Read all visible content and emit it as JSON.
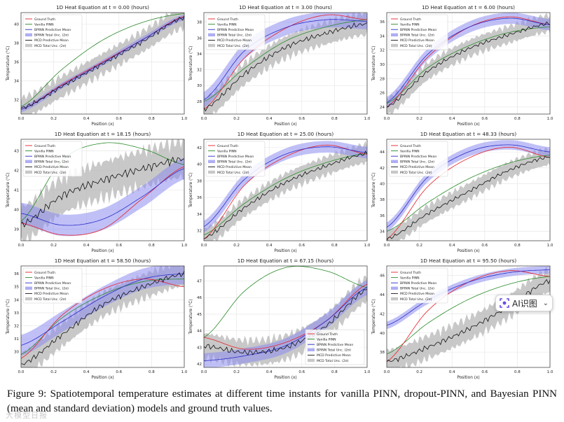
{
  "figure": {
    "caption": "Figure 9:  Spatiotemporal temperature estimates at different time instants for vanilla PINN, dropout-PINN, and Bayesian PINN (mean and standard deviation) models and ground truth values.",
    "widget_label": "AI识图",
    "watermark": "大模型日报"
  },
  "colors": {
    "ground_truth": "#e8202a",
    "vanilla": "#2a8a2a",
    "bpinn": "#2b2bc8",
    "bpinn_band": "#8c8cf0",
    "mcd": "#111111",
    "mcd_band": "#b0b0b0",
    "grid": "#e4e4e4"
  },
  "legend": [
    {
      "key": "gt",
      "label": "Ground Truth",
      "kind": "line",
      "color": "#e8202a"
    },
    {
      "key": "vanilla",
      "label": "Vanilla PINN",
      "kind": "line",
      "color": "#2a8a2a"
    },
    {
      "key": "bpinn",
      "label": "BPINN Predictive Mean",
      "kind": "line",
      "color": "#2b2bc8"
    },
    {
      "key": "bpinn_band",
      "label": "BPINN Total Unc. (2σ)",
      "kind": "patch",
      "color": "#8c8cf0"
    },
    {
      "key": "mcd",
      "label": "MCD Predictive Mean",
      "kind": "line",
      "color": "#111111"
    },
    {
      "key": "mcd_band",
      "label": "MCD Total Unc. (2σ)",
      "kind": "patch",
      "color": "#b0b0b0"
    }
  ],
  "chart_data": [
    {
      "type": "line",
      "title": "1D Heat Equation at t = 0.00 (hours)",
      "xlabel": "Position (x)",
      "ylabel": "Temperature (°C)",
      "xlim": [
        0,
        1
      ],
      "ylim": [
        30.5,
        41.2
      ],
      "xticks": [
        "0.0",
        "0.2",
        "0.4",
        "0.6",
        "0.8",
        "1.0"
      ],
      "yticks": [
        "32",
        "34",
        "36",
        "38",
        "40"
      ],
      "legend_loc": "top-left",
      "x": [
        0,
        0.25,
        0.5,
        0.75,
        1.0
      ],
      "series": [
        {
          "name": "Ground Truth",
          "values": [
            31.0,
            33.6,
            36.0,
            38.4,
            40.8
          ]
        },
        {
          "name": "Vanilla PINN",
          "values": [
            31.3,
            35.2,
            38.3,
            40.2,
            41.1
          ]
        },
        {
          "name": "BPINN Predictive Mean",
          "values": [
            31.0,
            33.5,
            35.9,
            38.4,
            40.7
          ]
        },
        {
          "name": "MCD Predictive Mean",
          "values": [
            31.1,
            33.4,
            35.8,
            38.2,
            40.7
          ]
        }
      ],
      "bpinn_unc": 0.3,
      "mcd_unc": 1.2
    },
    {
      "type": "line",
      "title": "1D Heat Equation at t = 3.00 (hours)",
      "xlabel": "Position (x)",
      "ylabel": "Temperature (°C)",
      "xlim": [
        0,
        1
      ],
      "ylim": [
        26.4,
        39.2
      ],
      "xticks": [
        "0.0",
        "0.2",
        "0.4",
        "0.6",
        "0.8",
        "1.0"
      ],
      "yticks": [
        "28",
        "30",
        "32",
        "34",
        "36",
        "38"
      ],
      "legend_loc": "top-left",
      "x": [
        0,
        0.25,
        0.5,
        0.75,
        1.0
      ],
      "series": [
        {
          "name": "Ground Truth",
          "values": [
            27.0,
            33.5,
            37.2,
            38.9,
            38.3
          ]
        },
        {
          "name": "Vanilla PINN",
          "values": [
            28.0,
            32.2,
            35.6,
            37.4,
            38.3
          ]
        },
        {
          "name": "BPINN Predictive Mean",
          "values": [
            28.2,
            34.4,
            37.3,
            38.3,
            38.1
          ]
        },
        {
          "name": "MCD Predictive Mean",
          "values": [
            27.0,
            31.5,
            34.8,
            36.6,
            37.8
          ]
        }
      ],
      "bpinn_unc": 1.0,
      "mcd_unc": 1.5
    },
    {
      "type": "line",
      "title": "1D Heat Equation at t = 6.00 (hours)",
      "xlabel": "Position (x)",
      "ylabel": "Temperature (°C)",
      "xlim": [
        0,
        1
      ],
      "ylim": [
        23.0,
        37.3
      ],
      "xticks": [
        "0.0",
        "0.2",
        "0.4",
        "0.6",
        "0.8",
        "1.0"
      ],
      "yticks": [
        "24",
        "26",
        "28",
        "30",
        "32",
        "34",
        "36"
      ],
      "legend_loc": "top-left",
      "x": [
        0,
        0.25,
        0.5,
        0.75,
        1.0
      ],
      "series": [
        {
          "name": "Ground Truth",
          "values": [
            24.0,
            31.0,
            35.2,
            36.7,
            35.6
          ]
        },
        {
          "name": "Vanilla PINN",
          "values": [
            24.5,
            29.5,
            32.6,
            34.5,
            35.3
          ]
        },
        {
          "name": "BPINN Predictive Mean",
          "values": [
            24.6,
            31.4,
            35.2,
            36.5,
            35.6
          ]
        },
        {
          "name": "MCD Predictive Mean",
          "values": [
            24.0,
            29.0,
            32.2,
            34.2,
            35.8
          ]
        }
      ],
      "bpinn_unc": 0.8,
      "mcd_unc": 1.3
    },
    {
      "type": "line",
      "title": "1D Heat Equation at t = 18.15 (hours)",
      "xlabel": "Position (x)",
      "ylabel": "Temperature (°C)",
      "xlim": [
        0,
        1
      ],
      "ylim": [
        38.4,
        43.6
      ],
      "xticks": [
        "0.0",
        "0.2",
        "0.4",
        "0.6",
        "0.8",
        "1.0"
      ],
      "yticks": [
        "39",
        "40",
        "41",
        "42",
        "43"
      ],
      "legend_loc": "top-left",
      "x": [
        0,
        0.25,
        0.5,
        0.75,
        1.0
      ],
      "series": [
        {
          "name": "Ground Truth",
          "values": [
            39.3,
            38.7,
            39.0,
            40.6,
            42.2
          ]
        },
        {
          "name": "Vanilla PINN",
          "values": [
            39.4,
            42.5,
            43.4,
            43.1,
            42.3
          ]
        },
        {
          "name": "BPINN Predictive Mean",
          "values": [
            39.8,
            39.2,
            39.5,
            40.7,
            42.1
          ]
        },
        {
          "name": "MCD Predictive Mean",
          "values": [
            39.2,
            40.7,
            41.5,
            42.1,
            42.6
          ]
        }
      ],
      "bpinn_unc": 0.55,
      "mcd_unc": 1.0
    },
    {
      "type": "line",
      "title": "1D Heat Equation at t = 25.00 (hours)",
      "xlabel": "Position (x)",
      "ylabel": "Temperature (°C)",
      "xlim": [
        0,
        1
      ],
      "ylim": [
        30.8,
        43.0
      ],
      "xticks": [
        "0.0",
        "0.2",
        "0.4",
        "0.6",
        "0.8",
        "1.0"
      ],
      "yticks": [
        "32",
        "34",
        "36",
        "38",
        "40",
        "42"
      ],
      "legend_loc": "top-left",
      "x": [
        0,
        0.25,
        0.5,
        0.75,
        1.0
      ],
      "series": [
        {
          "name": "Ground Truth",
          "values": [
            31.0,
            37.5,
            40.9,
            42.3,
            41.2
          ]
        },
        {
          "name": "Vanilla PINN",
          "values": [
            31.5,
            35.3,
            38.3,
            40.2,
            41.3
          ]
        },
        {
          "name": "BPINN Predictive Mean",
          "values": [
            32.5,
            38.2,
            41.2,
            42.1,
            41.4
          ]
        },
        {
          "name": "MCD Predictive Mean",
          "values": [
            31.1,
            34.8,
            37.8,
            39.8,
            41.3
          ]
        }
      ],
      "bpinn_unc": 0.7,
      "mcd_unc": 1.2
    },
    {
      "type": "line",
      "title": "1D Heat Equation at t = 48.33 (hours)",
      "xlabel": "Position (x)",
      "ylabel": "Temperature (°C)",
      "xlim": [
        0,
        1
      ],
      "ylim": [
        32.8,
        45.6
      ],
      "xticks": [
        "0.0",
        "0.2",
        "0.4",
        "0.6",
        "0.8",
        "1.0"
      ],
      "yticks": [
        "34",
        "36",
        "38",
        "40",
        "42",
        "44"
      ],
      "legend_loc": "top-left",
      "x": [
        0,
        0.25,
        0.5,
        0.75,
        1.0
      ],
      "series": [
        {
          "name": "Ground Truth",
          "values": [
            33.0,
            39.6,
            43.2,
            44.6,
            43.3
          ]
        },
        {
          "name": "Vanilla PINN",
          "values": [
            34.0,
            37.6,
            40.6,
            42.6,
            43.6
          ]
        },
        {
          "name": "BPINN Predictive Mean",
          "values": [
            34.5,
            40.8,
            44.0,
            44.9,
            44.0
          ]
        },
        {
          "name": "MCD Predictive Mean",
          "values": [
            33.0,
            36.2,
            39.0,
            41.7,
            43.4
          ]
        }
      ],
      "bpinn_unc": 0.6,
      "mcd_unc": 1.1
    },
    {
      "type": "line",
      "title": "1D Heat Equation at t = 58.50 (hours)",
      "xlabel": "Position (x)",
      "ylabel": "Temperature (°C)",
      "xlim": [
        0,
        1
      ],
      "ylim": [
        28.8,
        36.6
      ],
      "xticks": [
        "0.0",
        "0.2",
        "0.4",
        "0.6",
        "0.8",
        "1.0"
      ],
      "yticks": [
        "30",
        "31",
        "32",
        "33",
        "34",
        "35",
        "36"
      ],
      "legend_loc": "top-left",
      "x": [
        0,
        0.25,
        0.5,
        0.75,
        1.0
      ],
      "series": [
        {
          "name": "Ground Truth",
          "values": [
            29.5,
            32.8,
            34.8,
            35.6,
            35.0
          ]
        },
        {
          "name": "Vanilla PINN",
          "values": [
            29.8,
            32.6,
            34.4,
            35.4,
            35.6
          ]
        },
        {
          "name": "BPINN Predictive Mean",
          "values": [
            30.5,
            32.3,
            34.2,
            35.6,
            36.0
          ]
        },
        {
          "name": "MCD Predictive Mean",
          "values": [
            29.0,
            31.3,
            33.6,
            35.0,
            36.0
          ]
        }
      ],
      "bpinn_unc": 0.8,
      "mcd_unc": 1.0
    },
    {
      "type": "line",
      "title": "1D Heat Equation at t = 67.15 (hours)",
      "xlabel": "Position (x)",
      "ylabel": "Temperature (°C)",
      "xlim": [
        0,
        1
      ],
      "ylim": [
        41.8,
        47.9
      ],
      "xticks": [
        "0.0",
        "0.2",
        "0.4",
        "0.6",
        "0.8",
        "1.0"
      ],
      "yticks": [
        "42",
        "43",
        "44",
        "45",
        "46",
        "47"
      ],
      "legend_loc": "bottom-right",
      "x": [
        0,
        0.25,
        0.5,
        0.75,
        1.0
      ],
      "series": [
        {
          "name": "Ground Truth",
          "values": [
            43.6,
            42.9,
            43.3,
            44.6,
            46.8
          ]
        },
        {
          "name": "Vanilla PINN",
          "values": [
            43.6,
            46.4,
            47.8,
            47.6,
            46.6
          ]
        },
        {
          "name": "BPINN Predictive Mean",
          "values": [
            42.2,
            42.5,
            43.1,
            44.6,
            46.6
          ]
        },
        {
          "name": "MCD Predictive Mean",
          "values": [
            43.1,
            42.7,
            43.0,
            44.3,
            46.5
          ]
        }
      ],
      "bpinn_unc": 0.45,
      "mcd_unc": 0.8
    },
    {
      "type": "line",
      "title": "1D Heat Equation at t = 95.50 (hours)",
      "xlabel": "Position (x)",
      "ylabel": "Temperature (°C)",
      "xlim": [
        0,
        1
      ],
      "ylim": [
        36.4,
        47.0
      ],
      "xticks": [
        "0.0",
        "0.2",
        "0.4",
        "0.6",
        "0.8",
        "1.0"
      ],
      "yticks": [
        "38",
        "40",
        "42",
        "44",
        "46"
      ],
      "legend_loc": "top-left",
      "x": [
        0,
        0.25,
        0.5,
        0.75,
        1.0
      ],
      "series": [
        {
          "name": "Ground Truth",
          "values": [
            37.0,
            42.3,
            45.3,
            46.5,
            45.9
          ]
        },
        {
          "name": "Vanilla PINN",
          "values": [
            37.8,
            41.0,
            43.5,
            45.1,
            45.9
          ]
        },
        {
          "name": "BPINN Predictive Mean",
          "values": [
            40.8,
            43.4,
            45.3,
            46.3,
            46.6
          ]
        },
        {
          "name": "MCD Predictive Mean",
          "values": [
            37.0,
            38.5,
            40.4,
            42.8,
            45.5
          ]
        }
      ],
      "bpinn_unc": 0.4,
      "mcd_unc": 1.3
    }
  ]
}
